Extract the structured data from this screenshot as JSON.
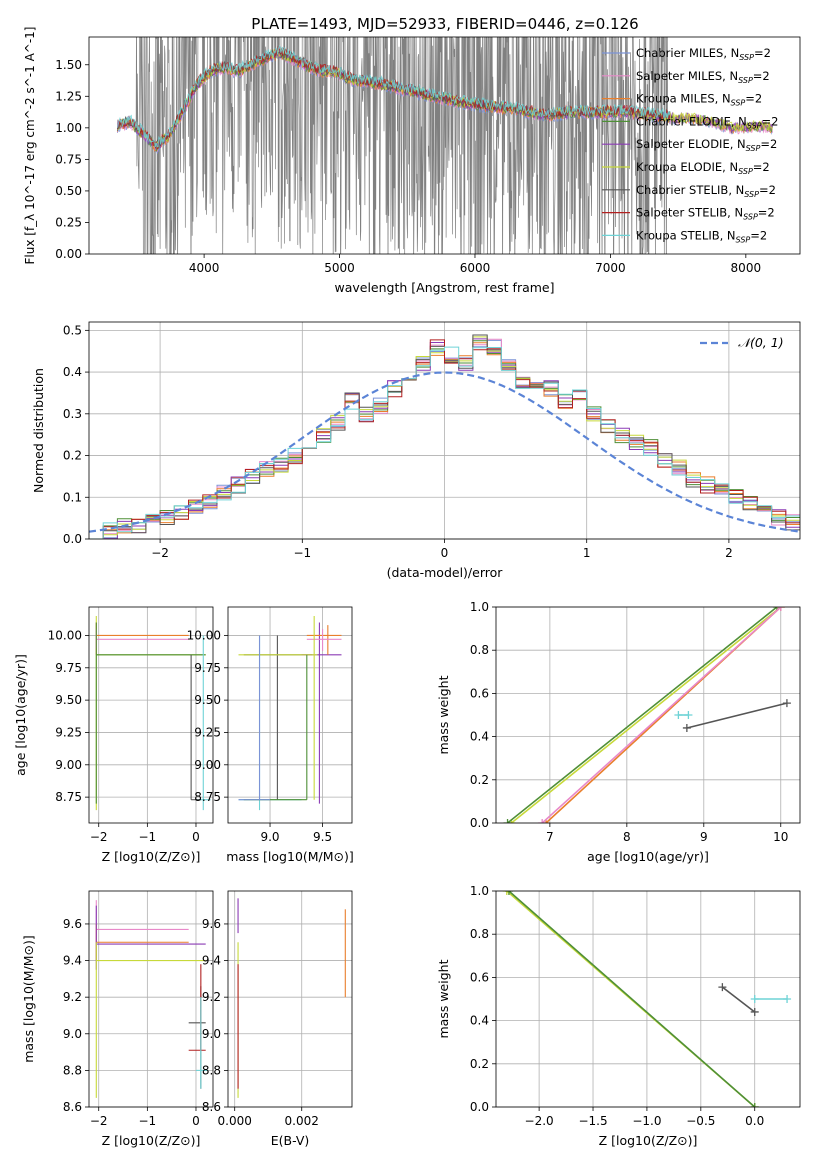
{
  "figure": {
    "title": "PLATE=1493, MJD=52933, FIBERID=0446, z=0.126",
    "model_colors": [
      "#7b93d6",
      "#e889c9",
      "#e97f2c",
      "#4f8f37",
      "#8b3bb5",
      "#c7d93a",
      "#555555",
      "#b22020",
      "#6fd3d6"
    ],
    "grid_color": "#b0b0b0"
  },
  "chart_data": [
    {
      "id": "spectrum",
      "type": "line",
      "xlabel": "wavelength [Angstrom, rest frame]",
      "ylabel": "Flux [f_λ 10^-17 erg cm^-2 s^-1 A^-1]",
      "xlim": [
        3150,
        8400
      ],
      "ylim": [
        0,
        1.72
      ],
      "xticks": [
        4000,
        5000,
        6000,
        7000,
        8000
      ],
      "yticks": [
        0.0,
        0.25,
        0.5,
        0.75,
        1.0,
        1.25,
        1.5
      ],
      "grid": false,
      "legend_position": "top-right",
      "data_color": "#808080",
      "data_x_range": [
        3360,
        7440
      ],
      "legend": [
        {
          "label": "Chabrier MILES, N",
          "sub": "SSP",
          "suffix": "=2",
          "color": "#7b93d6"
        },
        {
          "label": "Salpeter MILES, N",
          "sub": "SSP",
          "suffix": "=2",
          "color": "#e889c9"
        },
        {
          "label": "Kroupa MILES, N",
          "sub": "SSP",
          "suffix": "=2",
          "color": "#e97f2c"
        },
        {
          "label": "Chabrier ELODIE, N",
          "sub": "SSP",
          "suffix": "=2",
          "color": "#4f8f37"
        },
        {
          "label": "Salpeter ELODIE, N",
          "sub": "SSP",
          "suffix": "=2",
          "color": "#8b3bb5"
        },
        {
          "label": "Kroupa ELODIE, N",
          "sub": "SSP",
          "suffix": "=2",
          "color": "#c7d93a"
        },
        {
          "label": "Chabrier STELIB, N",
          "sub": "SSP",
          "suffix": "=2",
          "color": "#555555"
        },
        {
          "label": "Salpeter STELIB, N",
          "sub": "SSP",
          "suffix": "=2",
          "color": "#b22020"
        },
        {
          "label": "Kroupa STELIB, N",
          "sub": "SSP",
          "suffix": "=2",
          "color": "#6fd3d6"
        }
      ],
      "model_trend": {
        "x": [
          3370,
          3450,
          3550,
          3650,
          3750,
          3850,
          3950,
          4050,
          4150,
          4250,
          4350,
          4450,
          4550,
          4650,
          4750,
          4850,
          4950,
          5100,
          5300,
          5500,
          5700,
          5900,
          6100,
          6300,
          6500,
          6700,
          6900,
          7100,
          7300,
          7500,
          7700,
          7900,
          8100,
          8200
        ],
        "y": [
          1.02,
          1.05,
          0.95,
          0.85,
          0.95,
          1.15,
          1.35,
          1.45,
          1.48,
          1.45,
          1.5,
          1.55,
          1.6,
          1.55,
          1.5,
          1.45,
          1.45,
          1.38,
          1.35,
          1.3,
          1.25,
          1.2,
          1.17,
          1.15,
          1.1,
          1.12,
          1.12,
          1.13,
          1.1,
          1.08,
          1.07,
          1.0,
          1.02,
          1.0
        ]
      }
    },
    {
      "id": "residuals",
      "type": "bar",
      "xlabel": "(data-model)/error",
      "ylabel": "Normed distribution",
      "xlim": [
        -2.5,
        2.5
      ],
      "ylim": [
        0,
        0.52
      ],
      "xticks": [
        -2,
        -1,
        0,
        1,
        2
      ],
      "yticks": [
        0.0,
        0.1,
        0.2,
        0.3,
        0.4,
        0.5
      ],
      "grid": true,
      "legend_position": "top-right",
      "legend": [
        {
          "label": "𝒩(0, 1)",
          "color": "#5b84d6",
          "style": "dashed"
        }
      ],
      "bin_width": 0.1,
      "bin_start": -2.5,
      "values": [
        0.02,
        0.02,
        0.03,
        0.035,
        0.04,
        0.05,
        0.065,
        0.08,
        0.09,
        0.11,
        0.13,
        0.15,
        0.17,
        0.18,
        0.2,
        0.22,
        0.25,
        0.28,
        0.33,
        0.3,
        0.32,
        0.36,
        0.39,
        0.42,
        0.46,
        0.44,
        0.42,
        0.47,
        0.46,
        0.42,
        0.38,
        0.37,
        0.36,
        0.33,
        0.34,
        0.3,
        0.27,
        0.25,
        0.23,
        0.22,
        0.19,
        0.17,
        0.14,
        0.13,
        0.12,
        0.1,
        0.09,
        0.07,
        0.05,
        0.04
      ]
    },
    {
      "id": "age_vs_Z",
      "type": "scatter",
      "xlabel": "Z [log10(Z/Z⊙)]",
      "ylabel": "age  [log10(age/yr)]",
      "xlim": [
        -2.2,
        0.35
      ],
      "ylim": [
        8.55,
        10.22
      ],
      "xticks": [
        -2,
        -1,
        0
      ],
      "yticks": [
        8.75,
        9.0,
        9.25,
        9.5,
        9.75,
        10.0
      ],
      "grid": true,
      "bars": [
        {
          "x": -2.05,
          "y": 9.85,
          "x0": -2.05,
          "x1": 0.2,
          "y0": 8.65,
          "y1": 10.15,
          "c": 5
        },
        {
          "x": -2.05,
          "y": 10.0,
          "x0": -2.05,
          "x1": -0.15,
          "y0": 9.85,
          "y1": 10.1,
          "c": 2
        },
        {
          "x": -2.05,
          "y": 9.97,
          "x0": -2.05,
          "x1": -0.15,
          "y0": 9.9,
          "y1": 10.05,
          "c": 1
        },
        {
          "x": -2.05,
          "y": 9.85,
          "x0": -2.05,
          "x1": 0.2,
          "y0": 8.7,
          "y1": 10.1,
          "c": 3
        },
        {
          "x": 0.15,
          "y": 8.73,
          "x0": 0.0,
          "x1": 0.3,
          "y0": 8.65,
          "y1": 10.0,
          "c": 8
        },
        {
          "x": -0.1,
          "y": 8.73,
          "x0": -0.1,
          "x1": 0.1,
          "y0": 8.73,
          "y1": 9.85,
          "c": 6
        }
      ]
    },
    {
      "id": "age_vs_mass",
      "type": "scatter",
      "xlabel": "mass [log10(M/M⊙)]",
      "ylabel": "",
      "xlim": [
        8.6,
        9.78
      ],
      "ylim": [
        8.55,
        10.22
      ],
      "xticks": [
        9.0,
        9.5
      ],
      "yticks": [
        8.75,
        9.0,
        9.25,
        9.5,
        9.75,
        10.0
      ],
      "grid": true,
      "bars": [
        {
          "x": 8.9,
          "y": 8.73,
          "x0": 8.7,
          "x1": 9.3,
          "y0": 8.65,
          "y1": 10.0,
          "c": 8
        },
        {
          "x": 9.07,
          "y": 9.85,
          "x0": 8.75,
          "x1": 9.4,
          "y0": 8.73,
          "y1": 10.0,
          "c": 6
        },
        {
          "x": 9.47,
          "y": 9.85,
          "x0": 9.3,
          "x1": 9.68,
          "y0": 8.7,
          "y1": 10.1,
          "c": 4
        },
        {
          "x": 9.55,
          "y": 10.0,
          "x0": 9.35,
          "x1": 9.68,
          "y0": 9.85,
          "y1": 10.08,
          "c": 2
        },
        {
          "x": 9.5,
          "y": 9.97,
          "x0": 9.35,
          "x1": 9.68,
          "y0": 9.88,
          "y1": 10.05,
          "c": 1
        },
        {
          "x": 9.42,
          "y": 9.85,
          "x0": 8.7,
          "x1": 9.45,
          "y0": 8.73,
          "y1": 10.15,
          "c": 5
        },
        {
          "x": 9.35,
          "y": 8.73,
          "x0": 8.75,
          "x1": 9.35,
          "y0": 8.73,
          "y1": 9.85,
          "c": 3
        },
        {
          "x": 8.9,
          "y": 8.73,
          "x0": 8.7,
          "x1": 9.0,
          "y0": 8.73,
          "y1": 10.0,
          "c": 0
        }
      ]
    },
    {
      "id": "weight_vs_age",
      "type": "line",
      "xlabel": "age  [log10(age/yr)]",
      "ylabel": "mass weight",
      "xlim": [
        6.3,
        10.25
      ],
      "ylim": [
        0,
        1.0
      ],
      "xticks": [
        7,
        8,
        9,
        10
      ],
      "yticks": [
        0.0,
        0.2,
        0.4,
        0.6,
        0.8,
        1.0
      ],
      "grid": true,
      "lines": [
        {
          "x": [
            6.5,
            10.0
          ],
          "y": [
            0.0,
            1.0
          ],
          "c": 5
        },
        {
          "x": [
            6.45,
            9.95
          ],
          "y": [
            0.0,
            1.0
          ],
          "c": 3
        },
        {
          "x": [
            6.95,
            10.0
          ],
          "y": [
            0.0,
            1.0
          ],
          "c": 2
        },
        {
          "x": [
            6.9,
            10.0
          ],
          "y": [
            0.0,
            1.0
          ],
          "c": 1
        },
        {
          "x": [
            8.78,
            10.08
          ],
          "y": [
            0.44,
            0.555
          ],
          "c": 6
        },
        {
          "x": [
            8.67,
            8.8
          ],
          "y": [
            0.5,
            0.5
          ],
          "c": 8
        }
      ]
    },
    {
      "id": "mass_vs_Z",
      "type": "scatter",
      "xlabel": "Z [log10(Z/Z⊙)]",
      "ylabel": "mass [log10(M/M⊙)]",
      "xlim": [
        -2.2,
        0.35
      ],
      "ylim": [
        8.6,
        9.78
      ],
      "xticks": [
        -2,
        -1,
        0
      ],
      "yticks": [
        8.6,
        8.8,
        9.0,
        9.2,
        9.4,
        9.6
      ],
      "grid": true,
      "bars": [
        {
          "x": -2.05,
          "y": 9.57,
          "x0": -2.05,
          "x1": -0.15,
          "y0": 9.4,
          "y1": 9.73,
          "c": 1
        },
        {
          "x": -2.05,
          "y": 9.5,
          "x0": -2.05,
          "x1": -0.15,
          "y0": 9.4,
          "y1": 9.6,
          "c": 2
        },
        {
          "x": -2.05,
          "y": 9.49,
          "x0": -2.05,
          "x1": 0.2,
          "y0": 9.35,
          "y1": 9.7,
          "c": 4
        },
        {
          "x": -2.05,
          "y": 9.4,
          "x0": -2.05,
          "x1": 0.2,
          "y0": 8.65,
          "y1": 9.5,
          "c": 5
        },
        {
          "x": 0.1,
          "y": 9.06,
          "x0": -0.15,
          "x1": 0.2,
          "y0": 8.7,
          "y1": 9.26,
          "c": 6
        },
        {
          "x": 0.1,
          "y": 8.91,
          "x0": -0.15,
          "x1": 0.2,
          "y0": 8.91,
          "y1": 9.38,
          "c": 7
        },
        {
          "x": 0.1,
          "y": 8.8,
          "x0": 0.0,
          "x1": 0.25,
          "y0": 8.7,
          "y1": 9.2,
          "c": 8
        }
      ]
    },
    {
      "id": "mass_vs_ebv",
      "type": "scatter",
      "xlabel": "E(B-V)",
      "ylabel": "",
      "xlim": [
        -0.0002,
        0.0035
      ],
      "ylim": [
        8.6,
        9.78
      ],
      "xticks": [
        0.0,
        0.002
      ],
      "yticks": [
        8.6,
        8.8,
        9.0,
        9.2,
        9.4,
        9.6
      ],
      "grid": true,
      "bars": [
        {
          "x": 0.0001,
          "y": 9.6,
          "x0": 0.0001,
          "x1": 0.0001,
          "y0": 9.55,
          "y1": 9.74,
          "c": 4
        },
        {
          "x": 0.0001,
          "y": 9.4,
          "x0": 0.0001,
          "x1": 0.0001,
          "y0": 8.65,
          "y1": 9.5,
          "c": 5
        },
        {
          "x": 0.0001,
          "y": 9.06,
          "x0": 0.0001,
          "x1": 0.0001,
          "y0": 8.7,
          "y1": 9.38,
          "c": 7
        },
        {
          "x": 0.0033,
          "y": 9.45,
          "x0": 0.0033,
          "x1": 0.0033,
          "y0": 9.2,
          "y1": 9.68,
          "c": 2
        }
      ]
    },
    {
      "id": "weight_vs_Z",
      "type": "line",
      "xlabel": "Z [log10(Z/Z⊙)]",
      "ylabel": "mass weight",
      "xlim": [
        -2.4,
        0.42
      ],
      "ylim": [
        0,
        1.0
      ],
      "xticks": [
        -2.0,
        -1.5,
        -1.0,
        -0.5,
        0.0
      ],
      "yticks": [
        0.0,
        0.2,
        0.4,
        0.6,
        0.8,
        1.0
      ],
      "grid": true,
      "lines": [
        {
          "x": [
            -2.3,
            0.0
          ],
          "y": [
            1.0,
            0.0
          ],
          "c": 5
        },
        {
          "x": [
            -2.28,
            0.0
          ],
          "y": [
            1.0,
            0.0
          ],
          "c": 3
        },
        {
          "x": [
            -0.3,
            0.0
          ],
          "y": [
            0.555,
            0.44
          ],
          "c": 6
        },
        {
          "x": [
            0.0,
            0.3
          ],
          "y": [
            0.5,
            0.5
          ],
          "c": 8
        }
      ]
    }
  ]
}
